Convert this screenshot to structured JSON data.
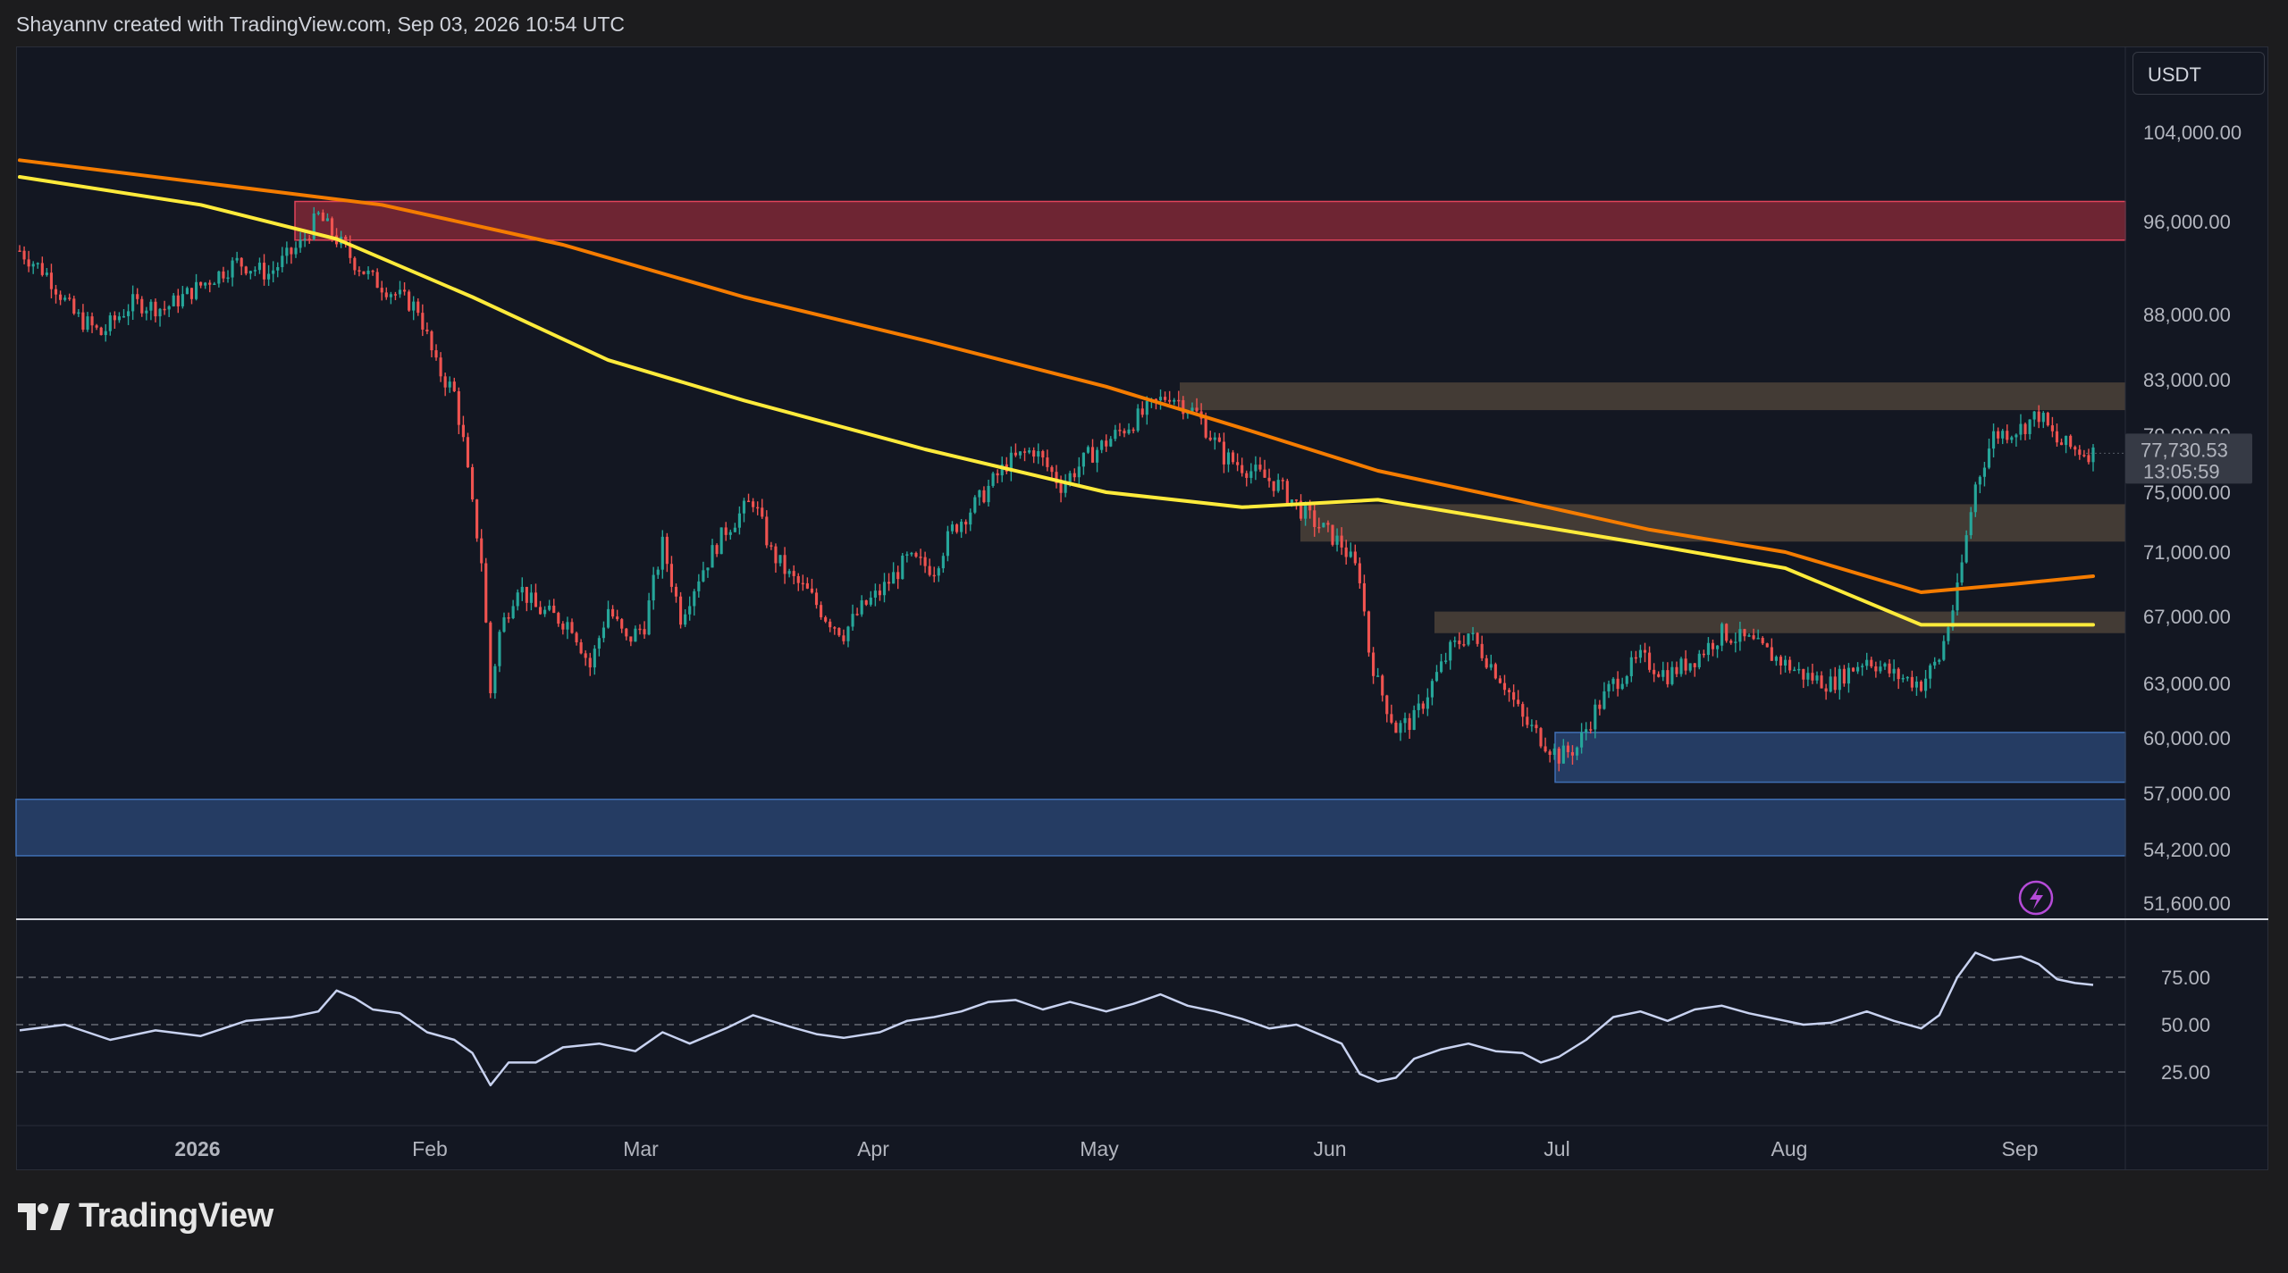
{
  "header": {
    "attribution": "Shayannv created with TradingView.com, Sep 03, 2026 10:54 UTC"
  },
  "price_axis": {
    "currency": "USDT",
    "ticks": [
      "104,000.00",
      "96,000.00",
      "88,000.00",
      "83,000.00",
      "79,000.00",
      "75,000.00",
      "71,000.00",
      "67,000.00",
      "63,000.00",
      "60,000.00",
      "57,000.00",
      "54,200.00",
      "51,600.00"
    ],
    "last_price": "77,730.53",
    "countdown": "13:05:59"
  },
  "rsi_axis": {
    "ticks": [
      "75.00",
      "50.00",
      "25.00"
    ]
  },
  "time_axis": {
    "labels": [
      "2026",
      "Feb",
      "Mar",
      "Apr",
      "May",
      "Jun",
      "Jul",
      "Aug",
      "Sep"
    ]
  },
  "footer": {
    "brand": "TradingView"
  },
  "colors": {
    "background": "#131722",
    "page": "#1c1c1e",
    "candle_up": "#26a69a",
    "candle_down": "#ef5350",
    "ma_orange": "#f57c00",
    "ma_yellow": "#ffeb3b",
    "rsi_line": "#c8d2f0",
    "supply_zone": "#8e2b3a",
    "neutral_zone": "#6b5a46",
    "demand_zone": "#2c4a7a"
  },
  "chart_data": {
    "type": "candlestick",
    "price_scale": {
      "min": 51600,
      "max": 104000
    },
    "rsi_scale": {
      "levels": [
        75,
        50,
        25
      ]
    },
    "close_path": [
      [
        0,
        93500
      ],
      [
        6,
        91500
      ],
      [
        12,
        88000
      ],
      [
        18,
        86500
      ],
      [
        25,
        89000
      ],
      [
        32,
        88500
      ],
      [
        40,
        90500
      ],
      [
        48,
        92500
      ],
      [
        55,
        91500
      ],
      [
        62,
        94000
      ],
      [
        66,
        96500
      ],
      [
        70,
        94500
      ],
      [
        74,
        92500
      ],
      [
        78,
        91000
      ],
      [
        84,
        89500
      ],
      [
        88,
        88500
      ],
      [
        92,
        84000
      ],
      [
        96,
        82000
      ],
      [
        98,
        78500
      ],
      [
        100,
        74000
      ],
      [
        102,
        70500
      ],
      [
        104,
        62500
      ],
      [
        106,
        66000
      ],
      [
        110,
        69000
      ],
      [
        114,
        67500
      ],
      [
        118,
        67000
      ],
      [
        122,
        66500
      ],
      [
        126,
        64000
      ],
      [
        130,
        67500
      ],
      [
        134,
        65500
      ],
      [
        138,
        66500
      ],
      [
        142,
        71500
      ],
      [
        146,
        67000
      ],
      [
        150,
        69500
      ],
      [
        156,
        72500
      ],
      [
        162,
        74500
      ],
      [
        166,
        71000
      ],
      [
        170,
        69500
      ],
      [
        174,
        68500
      ],
      [
        178,
        67000
      ],
      [
        182,
        66000
      ],
      [
        186,
        67500
      ],
      [
        190,
        68500
      ],
      [
        196,
        70500
      ],
      [
        202,
        70000
      ],
      [
        206,
        72500
      ],
      [
        212,
        74500
      ],
      [
        218,
        77000
      ],
      [
        224,
        78000
      ],
      [
        230,
        75500
      ],
      [
        236,
        77500
      ],
      [
        242,
        79000
      ],
      [
        248,
        80500
      ],
      [
        254,
        82000
      ],
      [
        260,
        80500
      ],
      [
        266,
        77500
      ],
      [
        272,
        76500
      ],
      [
        278,
        75500
      ],
      [
        284,
        73500
      ],
      [
        288,
        72500
      ],
      [
        292,
        71500
      ],
      [
        296,
        69500
      ],
      [
        298,
        65000
      ],
      [
        300,
        63000
      ],
      [
        304,
        60500
      ],
      [
        308,
        61000
      ],
      [
        312,
        63000
      ],
      [
        316,
        65000
      ],
      [
        320,
        66000
      ],
      [
        324,
        64500
      ],
      [
        328,
        63000
      ],
      [
        332,
        61000
      ],
      [
        336,
        60000
      ],
      [
        340,
        59000
      ],
      [
        344,
        59500
      ],
      [
        348,
        61500
      ],
      [
        352,
        63000
      ],
      [
        358,
        64500
      ],
      [
        364,
        63500
      ],
      [
        370,
        64500
      ],
      [
        376,
        66000
      ],
      [
        382,
        65500
      ],
      [
        388,
        64500
      ],
      [
        394,
        63500
      ],
      [
        400,
        63000
      ],
      [
        408,
        64500
      ],
      [
        414,
        63500
      ],
      [
        420,
        63000
      ],
      [
        424,
        64500
      ],
      [
        428,
        68500
      ],
      [
        432,
        75500
      ],
      [
        436,
        79000
      ],
      [
        442,
        79500
      ],
      [
        446,
        80500
      ],
      [
        450,
        78500
      ],
      [
        454,
        78000
      ],
      [
        458,
        77730
      ]
    ],
    "moving_averages": [
      {
        "color": "orange",
        "values": [
          [
            0,
            101500
          ],
          [
            40,
            99500
          ],
          [
            80,
            97500
          ],
          [
            120,
            94000
          ],
          [
            160,
            89500
          ],
          [
            200,
            86000
          ],
          [
            240,
            82500
          ],
          [
            270,
            79500
          ],
          [
            300,
            76500
          ],
          [
            330,
            74500
          ],
          [
            360,
            72500
          ],
          [
            390,
            71000
          ],
          [
            420,
            68500
          ],
          [
            440,
            69000
          ],
          [
            458,
            69500
          ]
        ]
      },
      {
        "color": "yellow",
        "values": [
          [
            0,
            100000
          ],
          [
            40,
            97500
          ],
          [
            70,
            94500
          ],
          [
            100,
            89500
          ],
          [
            130,
            84500
          ],
          [
            160,
            81500
          ],
          [
            200,
            78000
          ],
          [
            240,
            75000
          ],
          [
            270,
            74000
          ],
          [
            300,
            74500
          ],
          [
            330,
            73000
          ],
          [
            360,
            71500
          ],
          [
            390,
            70000
          ],
          [
            420,
            66500
          ],
          [
            440,
            66500
          ],
          [
            458,
            66500
          ]
        ]
      }
    ],
    "zones": [
      {
        "type": "supply",
        "from": 94400,
        "to": 97800
      },
      {
        "type": "neutral",
        "from": 80800,
        "to": 82800
      },
      {
        "type": "neutral",
        "from": 71700,
        "to": 74200
      },
      {
        "type": "neutral",
        "from": 66000,
        "to": 67300
      },
      {
        "type": "demand",
        "from": 57600,
        "to": 60300
      },
      {
        "type": "demand",
        "from": 53900,
        "to": 56700
      }
    ],
    "rsi": [
      [
        0,
        47
      ],
      [
        10,
        50
      ],
      [
        20,
        42
      ],
      [
        30,
        47
      ],
      [
        40,
        44
      ],
      [
        50,
        52
      ],
      [
        60,
        54
      ],
      [
        66,
        57
      ],
      [
        70,
        68
      ],
      [
        74,
        64
      ],
      [
        78,
        58
      ],
      [
        84,
        56
      ],
      [
        90,
        46
      ],
      [
        96,
        42
      ],
      [
        100,
        35
      ],
      [
        104,
        18
      ],
      [
        108,
        30
      ],
      [
        114,
        30
      ],
      [
        120,
        38
      ],
      [
        128,
        40
      ],
      [
        136,
        36
      ],
      [
        142,
        46
      ],
      [
        148,
        40
      ],
      [
        156,
        48
      ],
      [
        162,
        55
      ],
      [
        170,
        49
      ],
      [
        176,
        45
      ],
      [
        182,
        43
      ],
      [
        190,
        46
      ],
      [
        196,
        52
      ],
      [
        202,
        54
      ],
      [
        208,
        57
      ],
      [
        214,
        62
      ],
      [
        220,
        63
      ],
      [
        226,
        58
      ],
      [
        232,
        62
      ],
      [
        240,
        57
      ],
      [
        246,
        61
      ],
      [
        252,
        66
      ],
      [
        258,
        60
      ],
      [
        264,
        57
      ],
      [
        270,
        53
      ],
      [
        276,
        48
      ],
      [
        282,
        50
      ],
      [
        288,
        44
      ],
      [
        292,
        40
      ],
      [
        296,
        24
      ],
      [
        300,
        20
      ],
      [
        304,
        22
      ],
      [
        308,
        32
      ],
      [
        314,
        37
      ],
      [
        320,
        40
      ],
      [
        326,
        36
      ],
      [
        332,
        35
      ],
      [
        336,
        30
      ],
      [
        340,
        33
      ],
      [
        346,
        42
      ],
      [
        352,
        54
      ],
      [
        358,
        57
      ],
      [
        364,
        52
      ],
      [
        370,
        58
      ],
      [
        376,
        60
      ],
      [
        382,
        56
      ],
      [
        388,
        53
      ],
      [
        394,
        50
      ],
      [
        400,
        51
      ],
      [
        408,
        57
      ],
      [
        414,
        52
      ],
      [
        420,
        48
      ],
      [
        424,
        55
      ],
      [
        428,
        75
      ],
      [
        432,
        88
      ],
      [
        436,
        84
      ],
      [
        442,
        86
      ],
      [
        446,
        82
      ],
      [
        450,
        74
      ],
      [
        454,
        72
      ],
      [
        458,
        71
      ]
    ]
  }
}
